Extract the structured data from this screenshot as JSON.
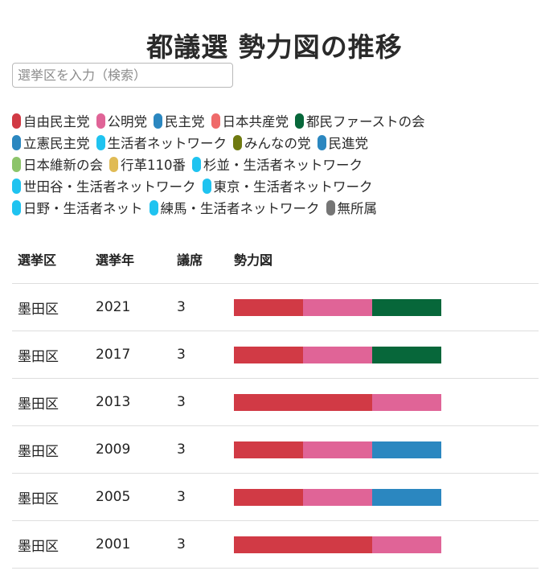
{
  "page": {
    "title": "都議選 勢力図の推移"
  },
  "search": {
    "placeholder": "選挙区を入力（検索）",
    "value": ""
  },
  "legend": {
    "rows": [
      [
        {
          "label": "自由民主党",
          "color": "#d13a45"
        },
        {
          "label": "公明党",
          "color": "#e06497"
        },
        {
          "label": "民主党",
          "color": "#2b87c0"
        },
        {
          "label": "日本共産党",
          "color": "#ef6a6a"
        },
        {
          "label": "都民ファーストの会",
          "color": "#07673a"
        }
      ],
      [
        {
          "label": "立憲民主党",
          "color": "#2b87c0"
        },
        {
          "label": "生活者ネットワーク",
          "color": "#1fc3f0"
        },
        {
          "label": "みんなの党",
          "color": "#6f7a10"
        },
        {
          "label": "民進党",
          "color": "#2b87c0"
        }
      ],
      [
        {
          "label": "日本維新の会",
          "color": "#8cc46a"
        },
        {
          "label": "行革110番",
          "color": "#e0bb55"
        },
        {
          "label": "杉並・生活者ネットワーク",
          "color": "#1fc3f0"
        }
      ],
      [
        {
          "label": "世田谷・生活者ネットワーク",
          "color": "#1fc3f0"
        },
        {
          "label": "東京・生活者ネットワーク",
          "color": "#1fc3f0"
        }
      ],
      [
        {
          "label": "日野・生活者ネット",
          "color": "#1fc3f0"
        },
        {
          "label": "練馬・生活者ネットワーク",
          "color": "#1fc3f0"
        },
        {
          "label": "無所属",
          "color": "#757575"
        }
      ]
    ]
  },
  "table": {
    "headers": [
      "選挙区",
      "選挙年",
      "議席",
      "勢力図"
    ],
    "rows": [
      {
        "district": "墨田区",
        "year": "2021",
        "seats": "3",
        "parties": [
          "自由民主党",
          "公明党",
          "都民ファーストの会"
        ]
      },
      {
        "district": "墨田区",
        "year": "2017",
        "seats": "3",
        "parties": [
          "自由民主党",
          "公明党",
          "都民ファーストの会"
        ]
      },
      {
        "district": "墨田区",
        "year": "2013",
        "seats": "3",
        "parties": [
          "自由民主党",
          "自由民主党",
          "公明党"
        ]
      },
      {
        "district": "墨田区",
        "year": "2009",
        "seats": "3",
        "parties": [
          "自由民主党",
          "公明党",
          "民主党"
        ]
      },
      {
        "district": "墨田区",
        "year": "2005",
        "seats": "3",
        "parties": [
          "自由民主党",
          "公明党",
          "民主党"
        ]
      },
      {
        "district": "墨田区",
        "year": "2001",
        "seats": "3",
        "parties": [
          "自由民主党",
          "自由民主党",
          "公明党"
        ]
      }
    ]
  }
}
